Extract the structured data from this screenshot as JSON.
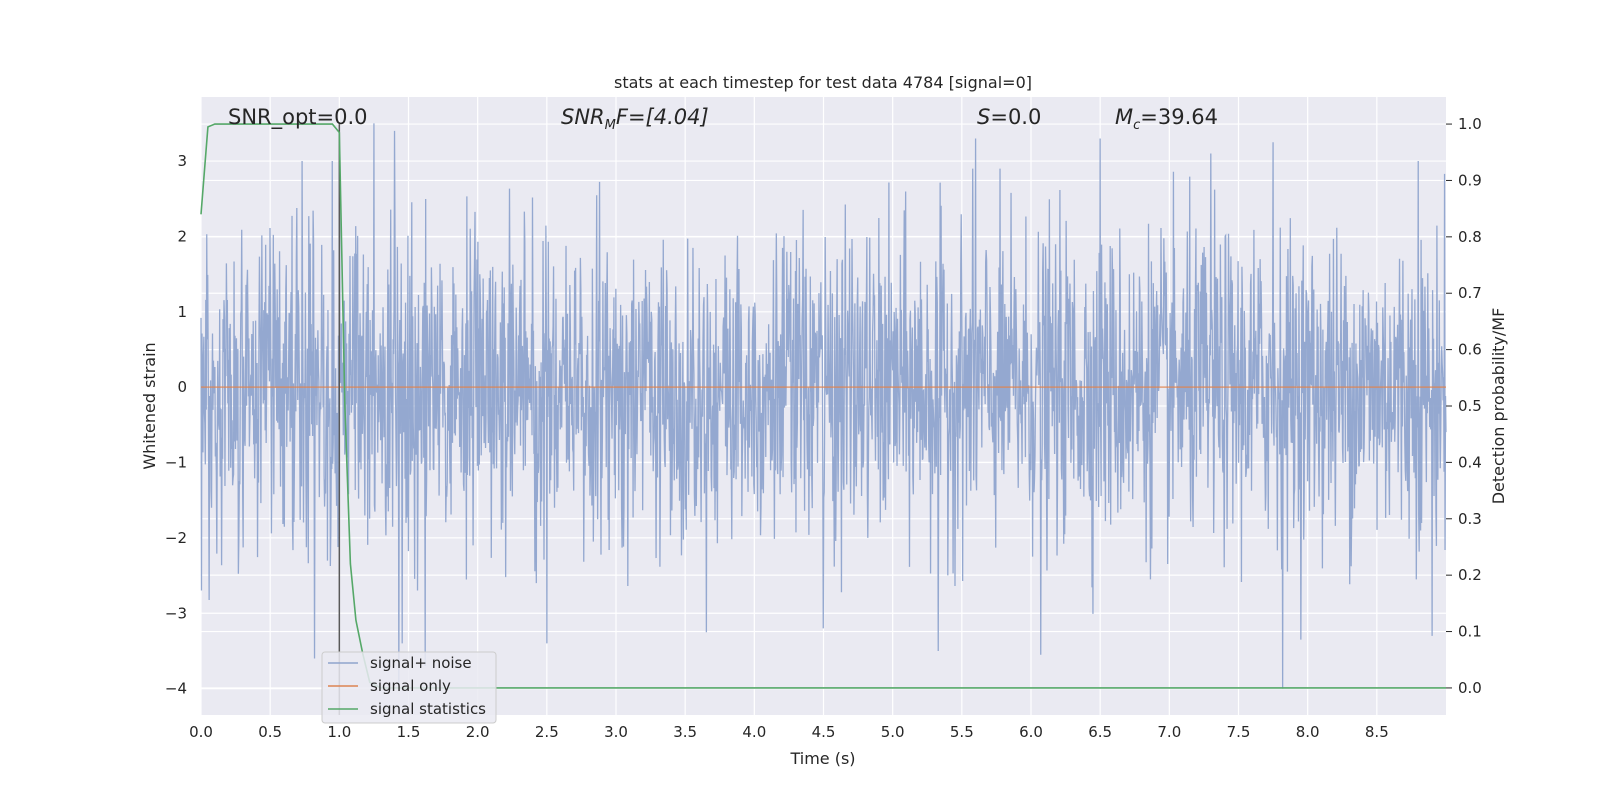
{
  "chart_data": {
    "type": "line",
    "title": "stats at each timestep for test data 4784 [signal=0]",
    "xlabel": "Time (s)",
    "ylabel": "Whitened strain",
    "ylabel_right": "Detection probability/MF",
    "xlim": [
      0,
      9.0
    ],
    "ylim": [
      -4.35,
      3.85
    ],
    "ylim_right": [
      -0.048,
      1.048
    ],
    "x_ticks": [
      "0.0",
      "0.5",
      "1.0",
      "1.5",
      "2.0",
      "2.5",
      "3.0",
      "3.5",
      "4.0",
      "4.5",
      "5.0",
      "5.5",
      "6.0",
      "6.5",
      "7.0",
      "7.5",
      "8.0",
      "8.5"
    ],
    "y_ticks": [
      "3",
      "2",
      "1",
      "0",
      "−1",
      "−2",
      "−3",
      "−4"
    ],
    "y_right_ticks": [
      "1.0",
      "0.9",
      "0.8",
      "0.7",
      "0.6",
      "0.5",
      "0.4",
      "0.3",
      "0.2",
      "0.1",
      "0.0"
    ],
    "grid": true,
    "annotations": {
      "snr_opt": "SNR_opt=0.0",
      "snr_mf_base": "SNR",
      "snr_mf_sub": "M",
      "snr_mf_rest": "F=[4.04]",
      "s_label": "S",
      "s_rest": "=0.0",
      "mc_base": "M",
      "mc_sub": "c",
      "mc_rest": "=39.64"
    },
    "series": [
      {
        "name": "signal+ noise",
        "color": "#8fa4cd",
        "description_range": [
          -4.0,
          3.5
        ],
        "peaks_high": [
          [
            0.73,
            3.0
          ],
          [
            0.95,
            3.0
          ],
          [
            1.0,
            3.0
          ],
          [
            1.25,
            3.5
          ],
          [
            1.4,
            3.4
          ],
          [
            5.6,
            3.3
          ],
          [
            6.5,
            3.3
          ],
          [
            7.3,
            3.1
          ],
          [
            7.75,
            3.25
          ],
          [
            8.8,
            3.0
          ]
        ],
        "peaks_low": [
          [
            0.82,
            -3.6
          ],
          [
            1.43,
            -4.0
          ],
          [
            1.62,
            -3.7
          ],
          [
            2.5,
            -3.4
          ],
          [
            4.5,
            -3.2
          ],
          [
            5.33,
            -3.5
          ],
          [
            6.07,
            -3.55
          ],
          [
            7.82,
            -4.0
          ],
          [
            7.95,
            -3.35
          ],
          [
            8.9,
            -3.3
          ]
        ]
      },
      {
        "name": "signal only",
        "color": "#dd8452",
        "x": [
          0,
          9.0
        ],
        "y": [
          0,
          0
        ]
      },
      {
        "name": "signal statistics",
        "color": "#55a868",
        "axis": "right",
        "x": [
          0.0,
          0.05,
          0.1,
          0.2,
          0.5,
          0.8,
          0.95,
          1.0,
          1.04,
          1.08,
          1.12,
          1.17,
          1.22,
          1.3,
          9.0
        ],
        "y": [
          0.84,
          0.995,
          1.0,
          1.0,
          1.0,
          1.0,
          1.0,
          0.985,
          0.5,
          0.22,
          0.12,
          0.06,
          0.01,
          0.0,
          0.0
        ]
      }
    ],
    "vline": {
      "x": 1.0,
      "color": "#595959"
    },
    "legend": {
      "position": "lower-left",
      "entries": [
        {
          "label": "signal+ noise",
          "color": "#8fa4cd"
        },
        {
          "label": "signal only",
          "color": "#dd8452"
        },
        {
          "label": "signal statistics",
          "color": "#55a868"
        }
      ]
    }
  }
}
